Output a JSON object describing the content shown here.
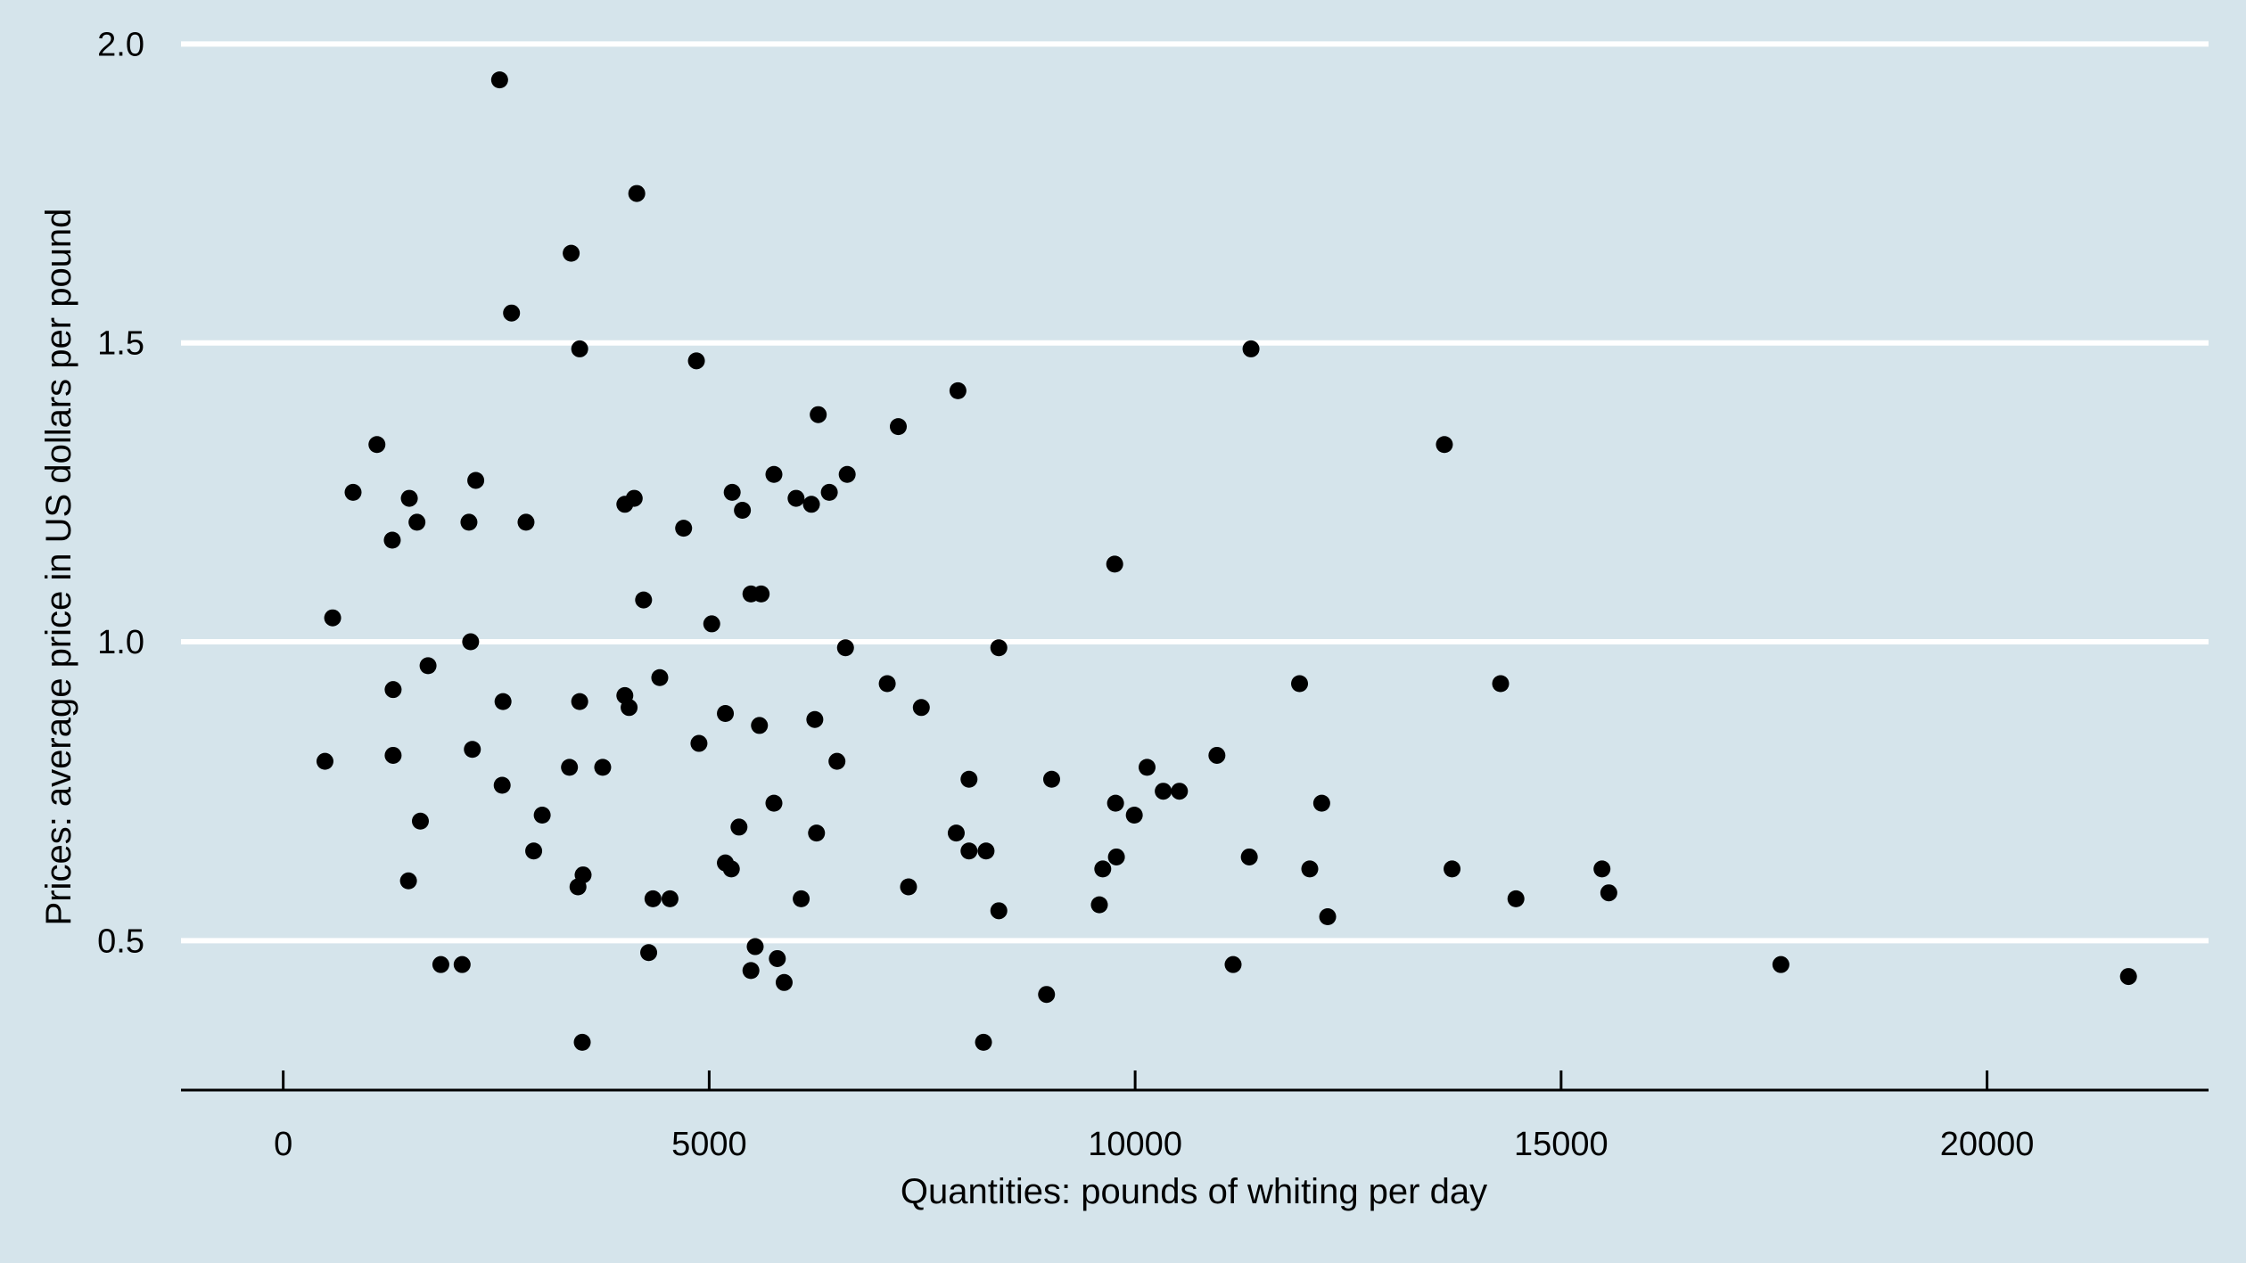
{
  "chart_data": {
    "type": "scatter",
    "title": "",
    "xlabel": "Quantities: pounds of whiting per day",
    "ylabel": "Prices: average price in US dollars per pound",
    "xlim": [
      -1200,
      22600
    ],
    "ylim": [
      0.25,
      2.02
    ],
    "x_ticks": [
      0,
      5000,
      10000,
      15000,
      20000
    ],
    "x_tick_labels": [
      "0",
      "5000",
      "10000",
      "15000",
      "20000"
    ],
    "y_ticks": [
      0.5,
      1.0,
      1.5,
      2.0
    ],
    "y_tick_labels": [
      "0.5",
      "1.0",
      "1.5",
      "2.0"
    ],
    "grid": "horizontal",
    "background": "#d5e4eb",
    "gridline_color": "#ffffff",
    "marker_color": "#000000",
    "points": [
      {
        "x": 490,
        "y": 0.8
      },
      {
        "x": 580,
        "y": 1.04
      },
      {
        "x": 820,
        "y": 1.25
      },
      {
        "x": 1100,
        "y": 1.33
      },
      {
        "x": 1280,
        "y": 1.17
      },
      {
        "x": 1290,
        "y": 0.92
      },
      {
        "x": 1290,
        "y": 0.81
      },
      {
        "x": 1480,
        "y": 1.24
      },
      {
        "x": 1470,
        "y": 0.6
      },
      {
        "x": 1570,
        "y": 1.2
      },
      {
        "x": 1610,
        "y": 0.7
      },
      {
        "x": 1700,
        "y": 0.96
      },
      {
        "x": 1850,
        "y": 0.46
      },
      {
        "x": 2100,
        "y": 0.46
      },
      {
        "x": 2180,
        "y": 1.2
      },
      {
        "x": 2200,
        "y": 1.0
      },
      {
        "x": 2220,
        "y": 0.82
      },
      {
        "x": 2260,
        "y": 1.27
      },
      {
        "x": 2540,
        "y": 1.94
      },
      {
        "x": 2580,
        "y": 0.9
      },
      {
        "x": 2570,
        "y": 0.76
      },
      {
        "x": 2680,
        "y": 1.55
      },
      {
        "x": 2850,
        "y": 1.2
      },
      {
        "x": 2940,
        "y": 0.65
      },
      {
        "x": 3040,
        "y": 0.71
      },
      {
        "x": 3380,
        "y": 1.65
      },
      {
        "x": 3360,
        "y": 0.79
      },
      {
        "x": 3460,
        "y": 0.59
      },
      {
        "x": 3480,
        "y": 1.49
      },
      {
        "x": 3480,
        "y": 0.9
      },
      {
        "x": 3520,
        "y": 0.61
      },
      {
        "x": 3510,
        "y": 0.33
      },
      {
        "x": 3750,
        "y": 0.79
      },
      {
        "x": 4010,
        "y": 0.91
      },
      {
        "x": 4010,
        "y": 1.23
      },
      {
        "x": 4060,
        "y": 0.89
      },
      {
        "x": 4120,
        "y": 1.24
      },
      {
        "x": 4150,
        "y": 1.75
      },
      {
        "x": 4230,
        "y": 1.07
      },
      {
        "x": 4290,
        "y": 0.48
      },
      {
        "x": 4340,
        "y": 0.57
      },
      {
        "x": 4420,
        "y": 0.94
      },
      {
        "x": 4540,
        "y": 0.57
      },
      {
        "x": 4700,
        "y": 1.19
      },
      {
        "x": 4850,
        "y": 1.47
      },
      {
        "x": 4880,
        "y": 0.83
      },
      {
        "x": 5030,
        "y": 1.03
      },
      {
        "x": 5190,
        "y": 0.88
      },
      {
        "x": 5190,
        "y": 0.63
      },
      {
        "x": 5260,
        "y": 0.62
      },
      {
        "x": 5270,
        "y": 1.25
      },
      {
        "x": 5350,
        "y": 0.69
      },
      {
        "x": 5390,
        "y": 1.22
      },
      {
        "x": 5490,
        "y": 1.08
      },
      {
        "x": 5490,
        "y": 0.45
      },
      {
        "x": 5540,
        "y": 0.49
      },
      {
        "x": 5590,
        "y": 0.86
      },
      {
        "x": 5610,
        "y": 1.08
      },
      {
        "x": 5760,
        "y": 1.28
      },
      {
        "x": 5760,
        "y": 0.73
      },
      {
        "x": 5800,
        "y": 0.47
      },
      {
        "x": 5880,
        "y": 0.43
      },
      {
        "x": 6020,
        "y": 1.24
      },
      {
        "x": 6080,
        "y": 0.57
      },
      {
        "x": 6200,
        "y": 1.23
      },
      {
        "x": 6240,
        "y": 0.87
      },
      {
        "x": 6260,
        "y": 0.68
      },
      {
        "x": 6280,
        "y": 1.38
      },
      {
        "x": 6410,
        "y": 1.25
      },
      {
        "x": 6500,
        "y": 0.8
      },
      {
        "x": 6600,
        "y": 0.99
      },
      {
        "x": 6620,
        "y": 1.28
      },
      {
        "x": 7090,
        "y": 0.93
      },
      {
        "x": 7220,
        "y": 1.36
      },
      {
        "x": 7340,
        "y": 0.59
      },
      {
        "x": 7490,
        "y": 0.89
      },
      {
        "x": 7900,
        "y": 0.68
      },
      {
        "x": 7920,
        "y": 1.42
      },
      {
        "x": 8050,
        "y": 0.65
      },
      {
        "x": 8050,
        "y": 0.77
      },
      {
        "x": 8220,
        "y": 0.33
      },
      {
        "x": 8250,
        "y": 0.65
      },
      {
        "x": 8400,
        "y": 0.99
      },
      {
        "x": 8400,
        "y": 0.55
      },
      {
        "x": 8960,
        "y": 0.41
      },
      {
        "x": 9020,
        "y": 0.77
      },
      {
        "x": 9580,
        "y": 0.56
      },
      {
        "x": 9620,
        "y": 0.62
      },
      {
        "x": 9760,
        "y": 1.13
      },
      {
        "x": 9770,
        "y": 0.73
      },
      {
        "x": 9780,
        "y": 0.64
      },
      {
        "x": 9990,
        "y": 0.71
      },
      {
        "x": 10140,
        "y": 0.79
      },
      {
        "x": 10330,
        "y": 0.75
      },
      {
        "x": 10520,
        "y": 0.75
      },
      {
        "x": 10960,
        "y": 0.81
      },
      {
        "x": 11150,
        "y": 0.46
      },
      {
        "x": 11340,
        "y": 0.64
      },
      {
        "x": 11360,
        "y": 1.49
      },
      {
        "x": 11930,
        "y": 0.93
      },
      {
        "x": 12050,
        "y": 0.62
      },
      {
        "x": 12190,
        "y": 0.73
      },
      {
        "x": 12260,
        "y": 0.54
      },
      {
        "x": 13630,
        "y": 1.33
      },
      {
        "x": 13720,
        "y": 0.62
      },
      {
        "x": 14290,
        "y": 0.93
      },
      {
        "x": 14470,
        "y": 0.57
      },
      {
        "x": 15480,
        "y": 0.62
      },
      {
        "x": 15560,
        "y": 0.58
      },
      {
        "x": 17580,
        "y": 0.46
      },
      {
        "x": 21660,
        "y": 0.44
      }
    ]
  }
}
